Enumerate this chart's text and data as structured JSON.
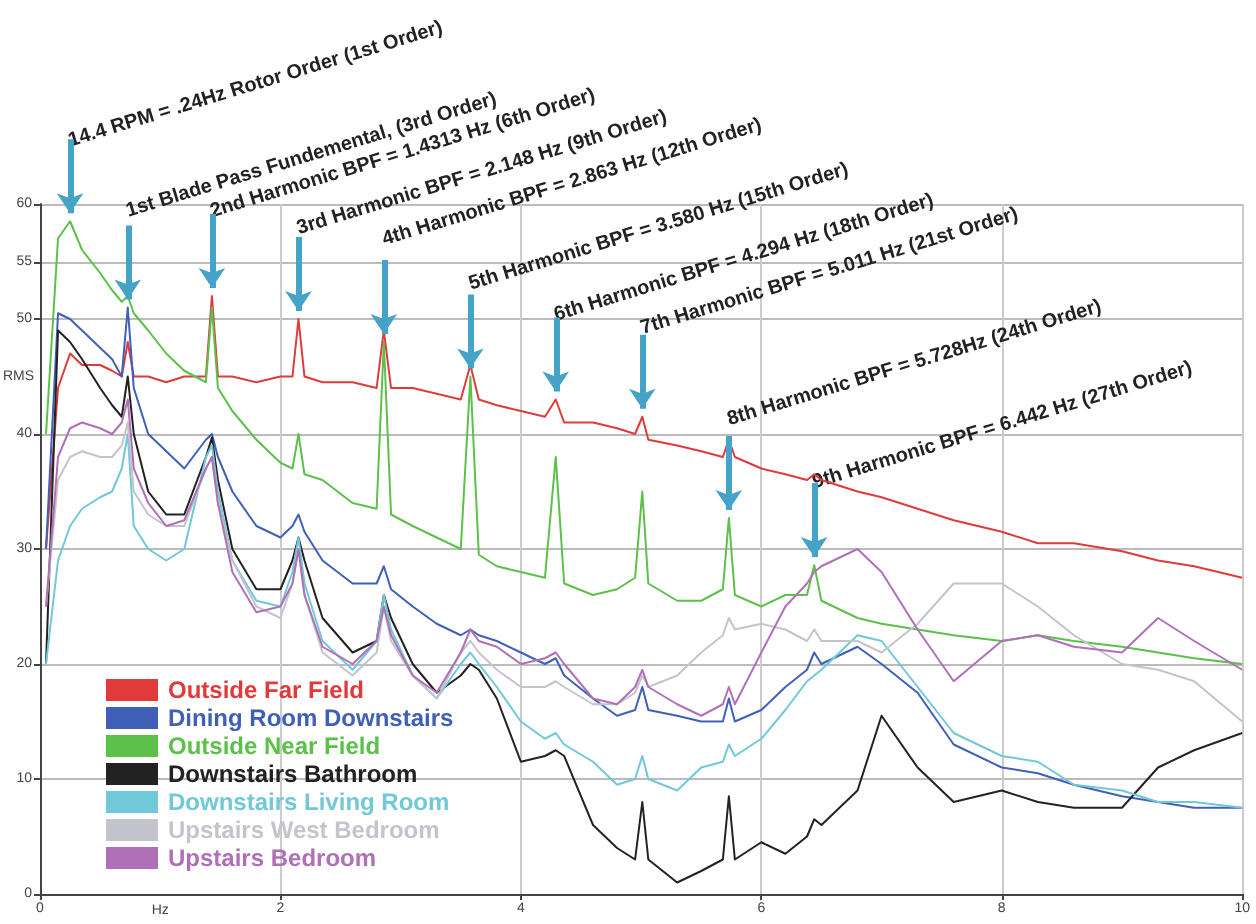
{
  "chart_data": {
    "type": "line",
    "xlabel": "Hz",
    "ylabel": "RMS",
    "xlim": [
      0,
      10
    ],
    "xticks": [
      0,
      2,
      4,
      6,
      8,
      10
    ],
    "ylim": [
      0,
      60
    ],
    "yticks": [
      0,
      10,
      20,
      30,
      40,
      50,
      55,
      60
    ],
    "grid": true,
    "legend": "bottom left",
    "marker": "none",
    "line_style": "solid",
    "x": [
      0.05,
      0.15,
      0.25,
      0.35,
      0.5,
      0.6,
      0.68,
      0.73,
      0.78,
      0.9,
      1.05,
      1.2,
      1.38,
      1.43,
      1.48,
      1.6,
      1.8,
      2.0,
      2.1,
      2.15,
      2.2,
      2.35,
      2.6,
      2.8,
      2.86,
      2.92,
      3.1,
      3.3,
      3.5,
      3.58,
      3.65,
      3.8,
      4.0,
      4.2,
      4.29,
      4.36,
      4.6,
      4.8,
      4.95,
      5.01,
      5.06,
      5.3,
      5.5,
      5.68,
      5.73,
      5.78,
      6.0,
      6.2,
      6.38,
      6.44,
      6.5,
      6.8,
      7.0,
      7.3,
      7.6,
      8.0,
      8.3,
      8.6,
      9.0,
      9.3,
      9.6,
      10.0
    ],
    "series": [
      {
        "name": "Outside Far Field",
        "color": "#e03a3a",
        "values": [
          30,
          44,
          47,
          46,
          46,
          45.5,
          45,
          48,
          45,
          45,
          44.5,
          45,
          45,
          52,
          45,
          45,
          44.5,
          45,
          45,
          50,
          45,
          44.5,
          44.5,
          44,
          49,
          44,
          44,
          43.5,
          43,
          46,
          43,
          42.5,
          42,
          41.5,
          43,
          41,
          41,
          40.5,
          40,
          41.5,
          39.5,
          39,
          38.5,
          38,
          39.5,
          38,
          37,
          36.5,
          36,
          36.5,
          36,
          35,
          34.5,
          33.5,
          32.5,
          31.5,
          30.5,
          30.5,
          29.8,
          29,
          28.5,
          27.5
        ]
      },
      {
        "name": "Dining Room Downstairs",
        "color": "#4060b8",
        "values": [
          30,
          50.5,
          50,
          49,
          47.5,
          46.5,
          45,
          51,
          44,
          40,
          38.5,
          37,
          39.5,
          40,
          38,
          35,
          32,
          31,
          32,
          33,
          31.5,
          29,
          27,
          27,
          28.5,
          26.5,
          25,
          23.5,
          22.5,
          23,
          22.5,
          22,
          21,
          20,
          20.5,
          19,
          17,
          15.5,
          16,
          18,
          16,
          15.5,
          15,
          15,
          17,
          15,
          16,
          18,
          19.5,
          21,
          20,
          21.5,
          20,
          17.5,
          13,
          11,
          10.5,
          9.5,
          8.5,
          8,
          7.5,
          7.5
        ]
      },
      {
        "name": "Outside Near Field",
        "color": "#5cc04a",
        "values": [
          40,
          57,
          58.5,
          56,
          54,
          52.5,
          51.5,
          52,
          50.5,
          49,
          47,
          45.5,
          44.5,
          51,
          44,
          42,
          39.5,
          37.5,
          37,
          40,
          36.5,
          36,
          34,
          33.5,
          48,
          33,
          32,
          31,
          30,
          45,
          29.5,
          28.5,
          28,
          27.5,
          38,
          27,
          26,
          26.5,
          27.5,
          35,
          27,
          25.5,
          25.5,
          26.5,
          32.7,
          26,
          25,
          26,
          26,
          28.6,
          25.5,
          24,
          23.5,
          23,
          22.5,
          22,
          22.5,
          22,
          21.5,
          21,
          20.5,
          20
        ]
      },
      {
        "name": "Downstairs Bathroom",
        "color": "#222222",
        "values": [
          20,
          49,
          48,
          46.5,
          44,
          42.5,
          41.5,
          45,
          40,
          35,
          33,
          33,
          38,
          39.7,
          36,
          30,
          26.5,
          26.5,
          29,
          31,
          29,
          24,
          21,
          22,
          26,
          24,
          20,
          17.5,
          19,
          20,
          19.5,
          17,
          11.5,
          12,
          12.5,
          12,
          6,
          4,
          3,
          8,
          3,
          1,
          2,
          3,
          8.5,
          3,
          4.5,
          3.5,
          5,
          6.5,
          6,
          9,
          15.5,
          11,
          8,
          9,
          8,
          7.5,
          7.5,
          11,
          12.5,
          14
        ]
      },
      {
        "name": "Downstairs Living Room",
        "color": "#70c8d8",
        "values": [
          20,
          29,
          32,
          33.5,
          34.5,
          35,
          37,
          40,
          32,
          30,
          29,
          30,
          38,
          39,
          35,
          29,
          25.5,
          25,
          28,
          31,
          27,
          22,
          19.5,
          22,
          26,
          23,
          19,
          17,
          20,
          21,
          20,
          18,
          15,
          13.5,
          14,
          13,
          11.5,
          9.5,
          10,
          12,
          10,
          9,
          11,
          11.5,
          13,
          12,
          13.5,
          16,
          18.5,
          19,
          19.5,
          22.5,
          22,
          18,
          14,
          12,
          11.5,
          9.5,
          9,
          8,
          8,
          7.5
        ]
      },
      {
        "name": "Upstairs West Bedroom",
        "color": "#c4c4cc",
        "values": [
          25,
          36,
          38,
          38.5,
          38,
          38,
          39,
          41,
          35,
          33,
          32,
          32,
          37,
          38,
          34,
          29,
          25,
          24,
          27,
          30,
          26,
          21,
          19,
          21,
          25,
          22,
          19,
          17,
          21,
          22,
          21,
          19.5,
          18,
          18,
          18.5,
          18,
          16.5,
          16.5,
          17.5,
          19,
          18,
          19,
          21,
          22.5,
          24,
          23,
          23.5,
          23,
          22,
          23,
          22,
          22,
          21,
          23.5,
          27,
          27,
          25,
          22.5,
          20,
          19.5,
          18.5,
          15
        ]
      },
      {
        "name": "Upstairs Bedroom",
        "color": "#b070b8",
        "values": [
          25,
          38,
          40.5,
          41,
          40.5,
          40,
          41,
          43,
          37,
          34,
          32,
          32.5,
          37,
          38,
          34,
          28,
          24.5,
          25,
          27,
          30,
          26,
          21.5,
          20,
          22,
          25,
          22.5,
          19,
          17.5,
          21,
          23,
          22,
          21.5,
          20,
          20.5,
          21,
          20,
          17,
          16.5,
          18,
          19.5,
          18,
          16.5,
          15.5,
          16.5,
          18,
          16.5,
          21,
          25,
          27,
          28,
          28.5,
          30,
          28,
          23,
          18.5,
          22,
          22.5,
          21.5,
          21,
          24,
          22,
          19.5
        ]
      }
    ],
    "annotations": [
      {
        "text": "14.4 RPM = .24Hz Rotor Order (1st Order)",
        "x": 0.25,
        "y": 58.5
      },
      {
        "text": "1st Blade Pass Fundemental, (3rd Order)",
        "x": 0.73,
        "y": 51
      },
      {
        "text": "2nd Harmonic BPF = 1.4313 Hz (6th Order)",
        "x": 1.43,
        "y": 52
      },
      {
        "text": "3rd Harmonic BPF = 2.148 Hz (9th Order)",
        "x": 2.15,
        "y": 50
      },
      {
        "text": "4th Harmonic BPF = 2.863 Hz (12th Order)",
        "x": 2.86,
        "y": 48
      },
      {
        "text": "5th Harmonic BPF = 3.580 Hz (15th Order)",
        "x": 3.58,
        "y": 45
      },
      {
        "text": "6th Harmonic BPF = 4.294 Hz (18th Order)",
        "x": 4.29,
        "y": 43
      },
      {
        "text": "7th Harmonic BPF = 5.011 Hz (21st Order)",
        "x": 5.01,
        "y": 41.5
      },
      {
        "text": "8th Harmonic BPF = 5.728Hz (24th Order)",
        "x": 5.73,
        "y": 32.7
      },
      {
        "text": "9th Harmonic BPF = 6.442 Hz (27th Order)",
        "x": 6.44,
        "y": 28.6
      }
    ]
  }
}
